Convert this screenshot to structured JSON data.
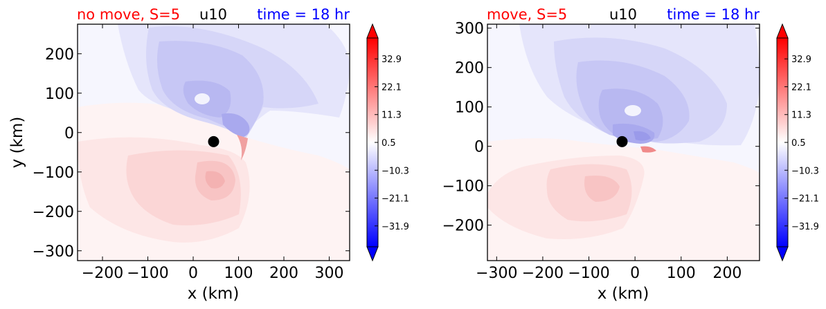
{
  "colors": {
    "left_title": "#ff0000",
    "center_title": "#000000",
    "right_title": "#0000ff",
    "marker": "#000000"
  },
  "chart_data": [
    {
      "type": "heatmap",
      "title_left": "no move, S=5",
      "title_center": "u10",
      "title_right": "time = 18 hr",
      "xlabel": "x (km)",
      "ylabel": "y (km)",
      "xlim": [
        -255,
        345
      ],
      "ylim": [
        -325,
        275
      ],
      "xticks": [
        -200,
        -100,
        0,
        100,
        200,
        300
      ],
      "xtick_labels": [
        "−200",
        "−100",
        "0",
        "100",
        "200",
        "300"
      ],
      "yticks": [
        -300,
        -200,
        -100,
        0,
        100,
        200
      ],
      "ytick_labels": [
        "−300",
        "−200",
        "−100",
        "0",
        "100",
        "200"
      ],
      "storm_center": [
        45,
        -23
      ],
      "colorbar": {
        "range": [
          -40,
          41
        ],
        "ticks": [
          32.9,
          22.1,
          11.3,
          0.5,
          -10.3,
          -21.1,
          -31.9
        ],
        "tick_labels": [
          "32.9",
          "22.1",
          "11.3",
          "0.5",
          "−10.3",
          "−21.1",
          "−31.9"
        ],
        "extend": "both"
      }
    },
    {
      "type": "heatmap",
      "title_left": "move, S=5",
      "title_center": "u10",
      "title_right": "time = 18 hr",
      "xlabel": "x (km)",
      "ylabel": "",
      "xlim": [
        -320,
        270
      ],
      "ylim": [
        -290,
        310
      ],
      "xticks": [
        -300,
        -200,
        -100,
        0,
        100,
        200
      ],
      "xtick_labels": [
        "−300",
        "−200",
        "−100",
        "0",
        "100",
        "200"
      ],
      "yticks": [
        -200,
        -100,
        0,
        100,
        200,
        300
      ],
      "ytick_labels": [
        "−200",
        "−100",
        "0",
        "100",
        "200",
        "300"
      ],
      "storm_center": [
        -28,
        12
      ],
      "colorbar": {
        "range": [
          -40,
          41
        ],
        "ticks": [
          32.9,
          22.1,
          11.3,
          0.5,
          -10.3,
          -21.1,
          -31.9
        ],
        "tick_labels": [
          "32.9",
          "22.1",
          "11.3",
          "0.5",
          "−10.3",
          "−21.1",
          "−31.9"
        ],
        "extend": "both"
      }
    }
  ]
}
